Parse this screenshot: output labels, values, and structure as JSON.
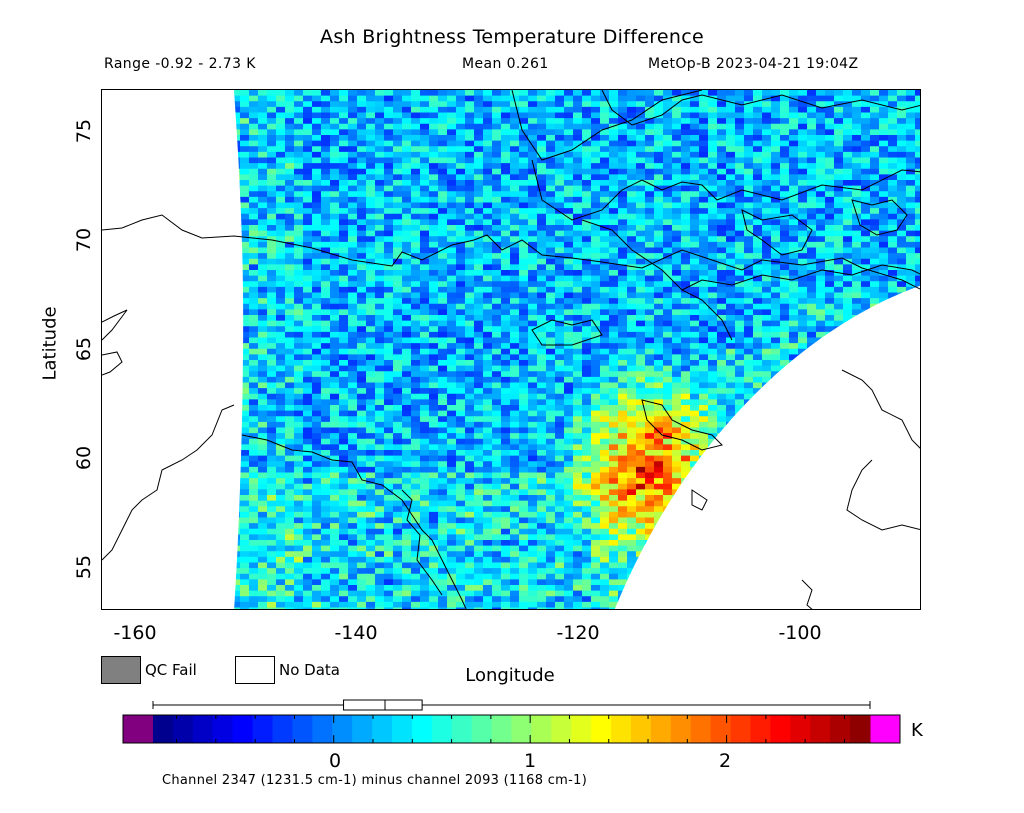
{
  "title": "Ash Brightness Temperature Difference",
  "range_text": "Range -0.92 - 2.73 K",
  "mean_text": "Mean 0.261",
  "satellite_text": "MetOp-B 2023-04-21 19:04Z",
  "axes": {
    "xlabel": "Longitude",
    "ylabel": "Latitude",
    "xticks": [
      "-160",
      "-140",
      "-120",
      "-100"
    ],
    "yticks": [
      "75",
      "70",
      "65",
      "60",
      "55"
    ],
    "xlim": [
      -162,
      -88
    ],
    "ylim": [
      52.5,
      77
    ]
  },
  "legend": {
    "qc_fail_label": "QC Fail",
    "no_data_label": "No Data",
    "qc_fail_color": "#808080",
    "no_data_color": "#ffffff"
  },
  "colorbar": {
    "unit": "K",
    "ticks": [
      "0",
      "1",
      "2"
    ],
    "vmin": -0.92,
    "vmax": 2.73,
    "below_color": "#800080",
    "above_color": "#ff00ff",
    "colormap": [
      "#000080",
      "#0000ff",
      "#0080ff",
      "#00ffff",
      "#80ff80",
      "#ffff00",
      "#ff8000",
      "#ff0000",
      "#800000"
    ],
    "boxplot": {
      "min": -0.92,
      "q1": 0.05,
      "median": 0.261,
      "q3": 0.45,
      "max": 2.73
    }
  },
  "channel_text": "Channel 2347 (1231.5 cm-1) minus channel 2093 (1168 cm-1)",
  "map": {
    "background_value_range": [
      -0.3,
      0.7
    ],
    "hotspot": {
      "lon": -113.5,
      "lat": 59.5,
      "value": 2.6,
      "label": ""
    }
  }
}
